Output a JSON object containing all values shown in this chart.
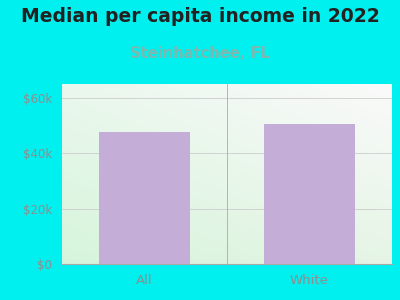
{
  "title": "Median per capita income in 2022",
  "subtitle": "Steinhatchee, FL",
  "categories": [
    "All",
    "White"
  ],
  "values": [
    47500,
    50700
  ],
  "bar_color": "#c4aed8",
  "title_fontsize": 13.5,
  "subtitle_fontsize": 10.5,
  "subtitle_color": "#7ab8b0",
  "tick_label_color": "#8a9090",
  "background_color": "#00efef",
  "ylim": [
    0,
    65000
  ],
  "yticks": [
    0,
    20000,
    40000,
    60000
  ],
  "ytick_labels": [
    "$0",
    "$20k",
    "$40k",
    "$60k"
  ],
  "plot_bg_color_topleft": [
    0.94,
    0.98,
    0.94
  ],
  "plot_bg_color_bottomleft": [
    0.82,
    0.95,
    0.84
  ],
  "plot_bg_color_topright": [
    0.98,
    0.98,
    0.98
  ],
  "plot_bg_color_bottomright": [
    0.88,
    0.95,
    0.88
  ]
}
